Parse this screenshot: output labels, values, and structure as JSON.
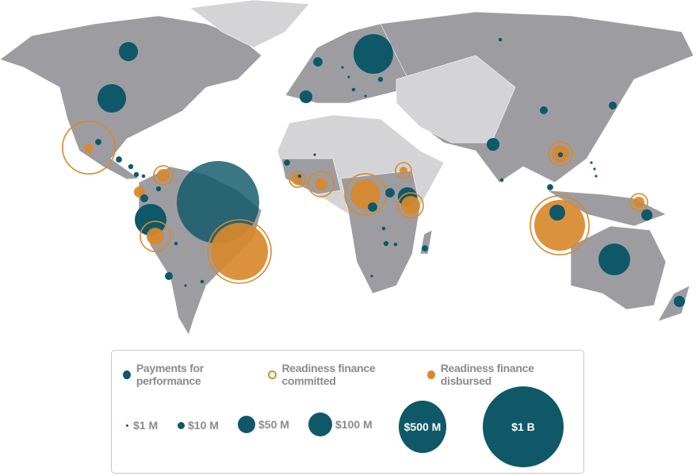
{
  "colors": {
    "payments": "#0f5868",
    "readiness": "#d9892b",
    "land_participating": "#9d9da1",
    "land_other": "#d4d4d6"
  },
  "legend": {
    "types": [
      {
        "key": "payments",
        "label": "Payments for performance",
        "style": "filled-teal"
      },
      {
        "key": "committed",
        "label": "Readiness finance committed",
        "style": "orange-ring"
      },
      {
        "key": "disbursed",
        "label": "Readiness finance disbursed",
        "style": "filled-orange"
      }
    ],
    "sizes": [
      {
        "label": "$1 M",
        "value_musd": 1
      },
      {
        "label": "$10 M",
        "value_musd": 10
      },
      {
        "label": "$50 M",
        "value_musd": 50
      },
      {
        "label": "$100 M",
        "value_musd": 100
      },
      {
        "label": "$500 M",
        "value_musd": 500
      },
      {
        "label": "$1 B",
        "value_musd": 1000
      }
    ]
  },
  "bubbles": [
    {
      "type": "payments",
      "value_musd": 58
    },
    {
      "type": "payments",
      "value_musd": 130
    },
    {
      "type": "committed",
      "value_musd": 440
    },
    {
      "type": "disbursed",
      "value_musd": 14
    },
    {
      "type": "payments",
      "value_musd": 6
    },
    {
      "type": "payments",
      "value_musd": 6
    },
    {
      "type": "payments",
      "value_musd": 4
    },
    {
      "type": "payments",
      "value_musd": 4
    },
    {
      "type": "payments",
      "value_musd": 2
    },
    {
      "type": "committed",
      "value_musd": 58
    },
    {
      "type": "disbursed",
      "value_musd": 26
    },
    {
      "type": "payments",
      "value_musd": 4
    },
    {
      "type": "disbursed",
      "value_musd": 20
    },
    {
      "type": "payments",
      "value_musd": 10
    },
    {
      "type": "payments",
      "value_musd": 160
    },
    {
      "type": "committed",
      "value_musd": 145
    },
    {
      "type": "disbursed",
      "value_musd": 48
    },
    {
      "type": "payments",
      "value_musd": 1080
    },
    {
      "type": "committed",
      "value_musd": 640
    },
    {
      "type": "disbursed",
      "value_musd": 520
    },
    {
      "type": "payments",
      "value_musd": 2
    },
    {
      "type": "payments",
      "value_musd": 10
    },
    {
      "type": "payments",
      "value_musd": 1
    },
    {
      "type": "payments",
      "value_musd": 2
    },
    {
      "type": "payments",
      "value_musd": 14
    },
    {
      "type": "payments",
      "value_musd": 250
    },
    {
      "type": "payments",
      "value_musd": 4
    },
    {
      "type": "payments",
      "value_musd": 1
    },
    {
      "type": "payments",
      "value_musd": 1
    },
    {
      "type": "payments",
      "value_musd": 2
    },
    {
      "type": "payments",
      "value_musd": 1
    },
    {
      "type": "payments",
      "value_musd": 26
    },
    {
      "type": "payments",
      "value_musd": 2
    },
    {
      "type": "payments",
      "value_musd": 6
    },
    {
      "type": "payments",
      "value_musd": 1
    },
    {
      "type": "committed",
      "value_musd": 40
    },
    {
      "type": "disbursed",
      "value_musd": 20
    },
    {
      "type": "payments",
      "value_musd": 2
    },
    {
      "type": "committed",
      "value_musd": 102
    },
    {
      "type": "disbursed",
      "value_musd": 26
    },
    {
      "type": "committed",
      "value_musd": 270
    },
    {
      "type": "disbursed",
      "value_musd": 145
    },
    {
      "type": "payments",
      "value_musd": 14
    },
    {
      "type": "payments",
      "value_musd": 14
    },
    {
      "type": "committed",
      "value_musd": 40
    },
    {
      "type": "disbursed",
      "value_musd": 10
    },
    {
      "type": "payments",
      "value_musd": 58
    },
    {
      "type": "committed",
      "value_musd": 102
    },
    {
      "type": "disbursed",
      "value_musd": 58
    },
    {
      "type": "payments",
      "value_musd": 4
    },
    {
      "type": "payments",
      "value_musd": 2
    },
    {
      "type": "payments",
      "value_musd": 2
    },
    {
      "type": "payments",
      "value_musd": 6
    },
    {
      "type": "payments",
      "value_musd": 1
    },
    {
      "type": "payments",
      "value_musd": 10
    },
    {
      "type": "payments",
      "value_musd": 10
    },
    {
      "type": "payments",
      "value_musd": 26
    },
    {
      "type": "committed",
      "value_musd": 90
    },
    {
      "type": "disbursed",
      "value_musd": 48
    },
    {
      "type": "payments",
      "value_musd": 4
    },
    {
      "type": "payments",
      "value_musd": 2
    },
    {
      "type": "payments",
      "value_musd": 6
    },
    {
      "type": "committed",
      "value_musd": 550
    },
    {
      "type": "disbursed",
      "value_musd": 410
    },
    {
      "type": "payments",
      "value_musd": 40
    },
    {
      "type": "committed",
      "value_musd": 48
    },
    {
      "type": "disbursed",
      "value_musd": 20
    },
    {
      "type": "payments",
      "value_musd": 20
    },
    {
      "type": "payments",
      "value_musd": 160
    },
    {
      "type": "payments",
      "value_musd": 20
    },
    {
      "type": "payments",
      "value_musd": 1
    },
    {
      "type": "payments",
      "value_musd": 1
    },
    {
      "type": "payments",
      "value_musd": 1
    }
  ]
}
